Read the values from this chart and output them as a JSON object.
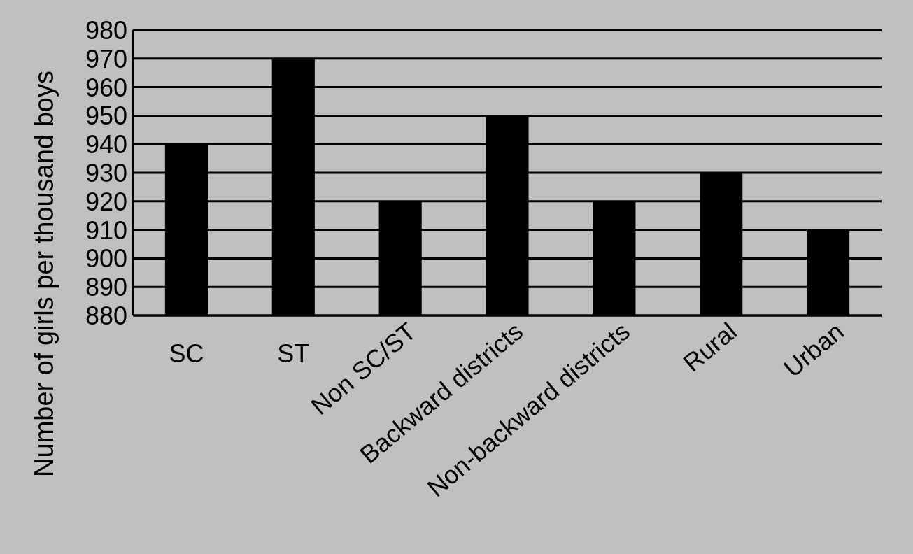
{
  "chart_data": {
    "type": "bar",
    "ylabel": "Number of girls per thousand boys",
    "categories": [
      "SC",
      "ST",
      "Non SC/ST",
      "Backward districts",
      "Non-backward districts",
      "Rural",
      "Urban"
    ],
    "values": [
      940,
      970,
      920,
      950,
      920,
      930,
      910
    ],
    "color": "#000000",
    "ylim": [
      880,
      980
    ],
    "yticks": [
      880,
      890,
      900,
      910,
      920,
      930,
      940,
      950,
      960,
      970,
      980
    ],
    "grid": "y"
  }
}
